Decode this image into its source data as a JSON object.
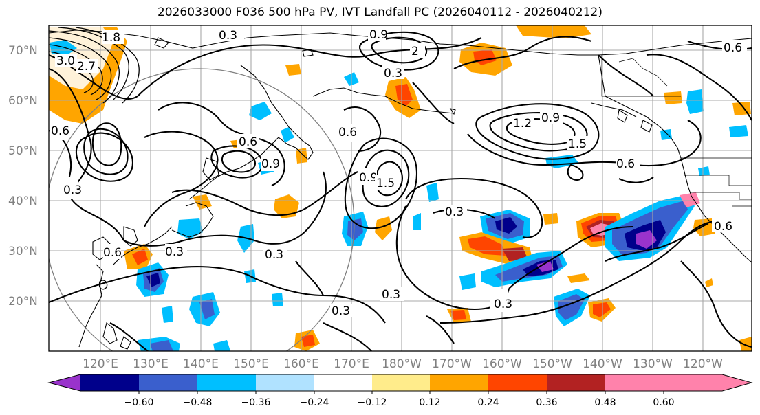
{
  "title": "2026033000 F036 500 hPa PV, IVT Landfall PC (2026040112 - 2026040212)",
  "lat_labels": [
    "70°N",
    "60°N",
    "50°N",
    "40°N",
    "30°N",
    "20°N"
  ],
  "lon_labels": [
    "120°E",
    "130°E",
    "140°E",
    "150°E",
    "160°E",
    "170°E",
    "180°W",
    "170°W",
    "160°W",
    "150°W",
    "140°W",
    "130°W",
    "120°W"
  ],
  "colorbar": {
    "ticks": [
      "−0.60",
      "−0.48",
      "−0.36",
      "−0.24",
      "−0.12",
      "0.12",
      "0.24",
      "0.36",
      "0.48",
      "0.60"
    ],
    "colors": [
      "#9933cc",
      "#00008b",
      "#3a5fcd",
      "#00bfff",
      "#b0e2ff",
      "#ffffff",
      "#ffec8b",
      "#ffa500",
      "#ff4500",
      "#b22222",
      "#ff82ab"
    ]
  },
  "contour_labels": [
    "0.3",
    "0.6",
    "0.9",
    "1.2",
    "1.5",
    "1.8",
    "2",
    "2.7",
    "3.0"
  ],
  "colors": {
    "contour": "#000000",
    "grid": "#a8a8a8",
    "axis_label": "#808080",
    "ring": "#808080"
  }
}
